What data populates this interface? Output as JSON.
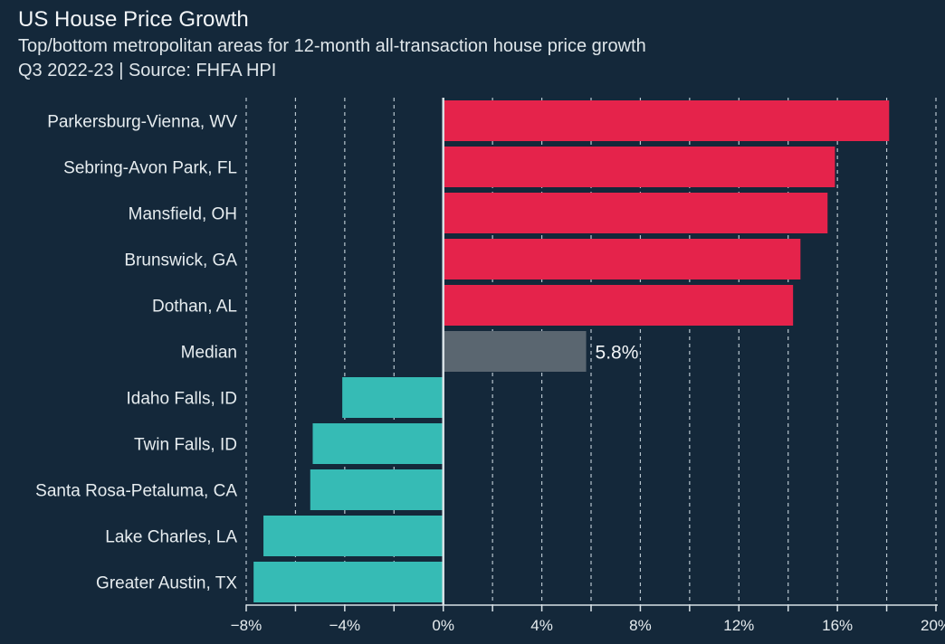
{
  "chart_data": {
    "type": "bar",
    "orientation": "horizontal",
    "title": "US House Price Growth",
    "subtitle": "Top/bottom metropolitan areas for 12-month all-transaction house price growth",
    "subtitle2": "Q3 2022-23 | Source: FHFA HPI",
    "categories": [
      "Parkersburg-Vienna, WV",
      "Sebring-Avon Park, FL",
      "Mansfield, OH",
      "Brunswick, GA",
      "Dothan, AL",
      "Median",
      "Idaho Falls, ID",
      "Twin Falls, ID",
      "Santa Rosa-Petaluma, CA",
      "Lake Charles, LA",
      "Greater Austin, TX"
    ],
    "values": [
      18.1,
      15.9,
      15.6,
      14.5,
      14.2,
      5.8,
      -4.1,
      -5.3,
      -5.4,
      -7.3,
      -7.7
    ],
    "groups": [
      "top",
      "top",
      "top",
      "top",
      "top",
      "median",
      "bottom",
      "bottom",
      "bottom",
      "bottom",
      "bottom"
    ],
    "annotations": [
      {
        "category": "Median",
        "text": "5.8%"
      }
    ],
    "xlim": [
      -8,
      20
    ],
    "xticks": [
      -8,
      -4,
      0,
      4,
      8,
      12,
      16,
      20
    ],
    "xtick_labels": [
      "−8%",
      "−4%",
      "0%",
      "4%",
      "8%",
      "12%",
      "16%",
      "20%"
    ],
    "minor_tick_step": 2,
    "grid": "vertical dashed",
    "colors": {
      "top": "#e5234b",
      "median": "#5a6670",
      "bottom": "#36bbb5",
      "background": "#14283a"
    }
  }
}
